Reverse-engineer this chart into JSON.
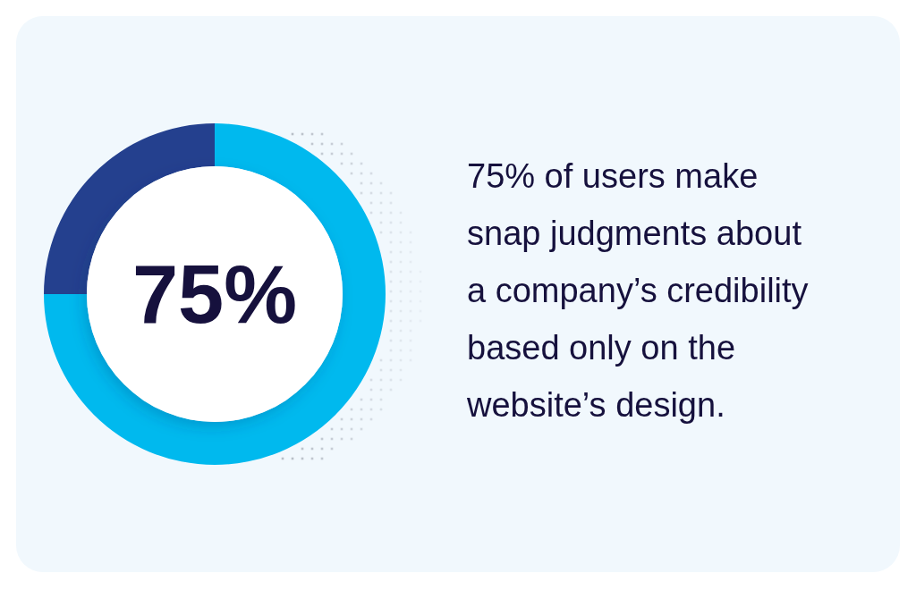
{
  "chart_data": {
    "type": "donut",
    "categories": [
      null,
      null
    ],
    "values": [
      75,
      25
    ],
    "colors": [
      "#00b9ee",
      "#24408e"
    ],
    "value_labels": [
      "75%",
      null
    ],
    "annotations": [
      "75% of users make\nsnap judgments about\na company’s credibility\nbased only on the\nwebsite’s design."
    ]
  }
}
